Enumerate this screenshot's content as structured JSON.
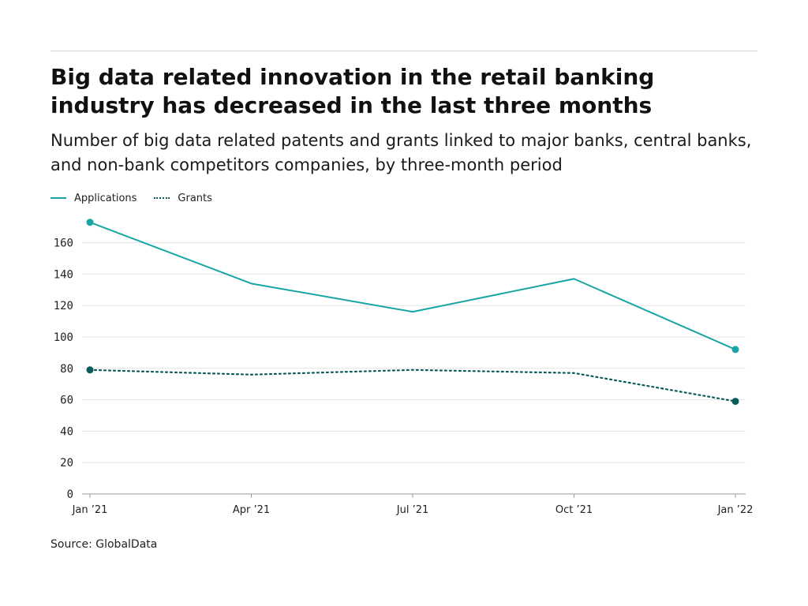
{
  "header": {
    "title": "Big data related innovation in the retail banking industry has decreased in the last three months",
    "subtitle": "Number of big data related patents and grants linked to major banks, central banks, and non-bank competitors companies, by three-month period"
  },
  "footer": {
    "source": "Source: GlobalData"
  },
  "colors": {
    "applications": "#1aa5a5",
    "grants": "#0b5b5b",
    "grid": "#e3e3e3",
    "axis": "#9a9a9a"
  },
  "chart_data": {
    "type": "line",
    "categories": [
      "Jan ’21",
      "Apr ’21",
      "Jul ’21",
      "Oct ’21",
      "Jan ’22"
    ],
    "series": [
      {
        "name": "Applications",
        "style": "solid",
        "values": [
          173,
          134,
          116,
          137,
          92
        ]
      },
      {
        "name": "Grants",
        "style": "dotted",
        "values": [
          79,
          76,
          79,
          77,
          59
        ]
      }
    ],
    "y_ticks": [
      0,
      20,
      40,
      60,
      80,
      100,
      120,
      140,
      160
    ],
    "ylim": [
      0,
      180
    ],
    "xlabel": "",
    "ylabel": "",
    "grid": true,
    "legend_position": "top-left",
    "end_markers": true
  }
}
